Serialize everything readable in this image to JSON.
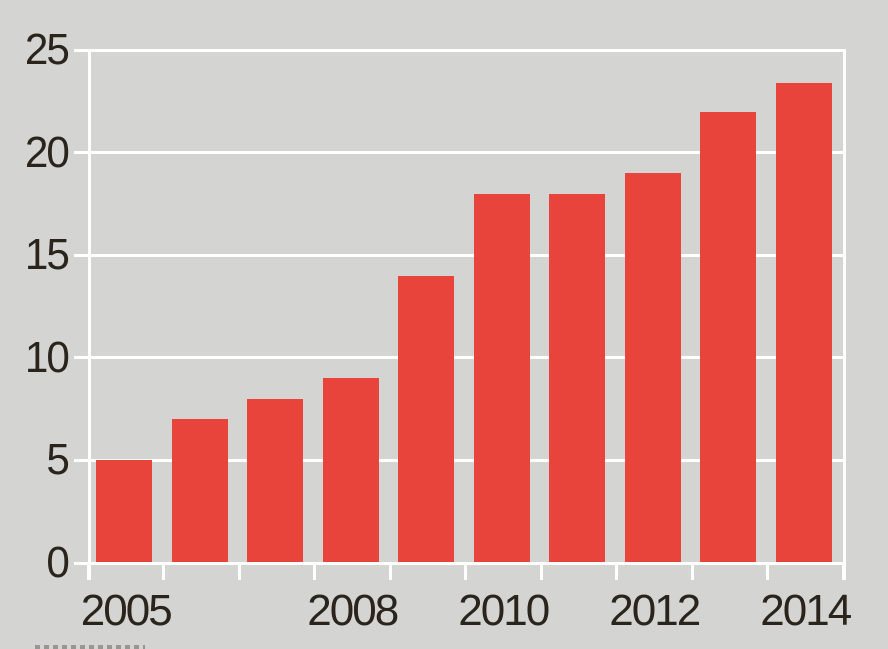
{
  "colors": {
    "background": "#d4d4d2",
    "bar": "#e9443b",
    "grid": "#ffffff",
    "text": "#2b241c"
  },
  "chart_data": {
    "type": "bar",
    "x": [
      2005,
      2006,
      2007,
      2008,
      2009,
      2010,
      2011,
      2012,
      2013,
      2014
    ],
    "values": [
      5,
      7,
      8,
      9,
      14,
      18,
      18,
      19,
      22,
      23.4
    ],
    "title": "",
    "xlabel": "",
    "ylabel": "",
    "ylim": [
      0,
      25
    ],
    "yticks": [
      0,
      5,
      10,
      15,
      20,
      25
    ],
    "ytick_labels": [
      "0",
      "5",
      "10",
      "15",
      "20",
      "25"
    ],
    "xtick_label_years": [
      2005,
      2008,
      2010,
      2012,
      2014
    ],
    "xtick_labels": [
      "2005",
      "2008",
      "2010",
      "2012",
      "2014"
    ],
    "grid": true,
    "legend": false,
    "bar_color": "#e9443b",
    "gridline_color": "#ffffff",
    "plot_background": "#d4d4d2",
    "bottom_edge_cutoff_text": true
  }
}
